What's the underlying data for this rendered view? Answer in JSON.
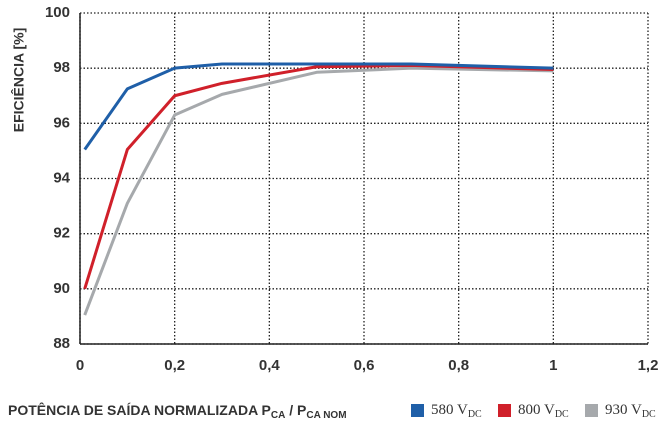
{
  "chart_data": {
    "type": "line",
    "ylabel": "EFICIÊNCIA [%]",
    "xlabel": "POTÊNCIA DE SAÍDA NORMALIZADA P",
    "xlabel_sub": "CA",
    "xlabel_mid": " / P",
    "xlabel_sub2": "CA NOM",
    "legend_subscript": "DC",
    "xlim": [
      0,
      1.2
    ],
    "xticks": [
      0,
      {
        "value": 0.2,
        "label": "0,2"
      },
      {
        "value": 0.4,
        "label": "0,4"
      },
      {
        "value": 0.6,
        "label": "0,6"
      },
      {
        "value": 0.8,
        "label": "0,8"
      },
      1,
      {
        "value": 1.2,
        "label": "1,2"
      }
    ],
    "ylim": [
      88,
      100
    ],
    "yticks": [
      88,
      90,
      92,
      94,
      96,
      98,
      100
    ],
    "grid": true,
    "x": [
      0.01,
      0.1,
      0.2,
      0.3,
      0.5,
      0.7,
      1.0
    ],
    "series": [
      {
        "name": "580 V",
        "color": "#1f5fa8",
        "values": [
          95.05,
          97.25,
          98.0,
          98.15,
          98.15,
          98.15,
          98.0
        ]
      },
      {
        "name": "800 V",
        "color": "#d0202a",
        "values": [
          90.0,
          95.05,
          97.0,
          97.45,
          98.05,
          98.1,
          97.95
        ]
      },
      {
        "name": "930 V",
        "color": "#a6a9ac",
        "values": [
          89.05,
          93.1,
          96.3,
          97.05,
          97.85,
          98.0,
          97.9
        ]
      }
    ]
  }
}
